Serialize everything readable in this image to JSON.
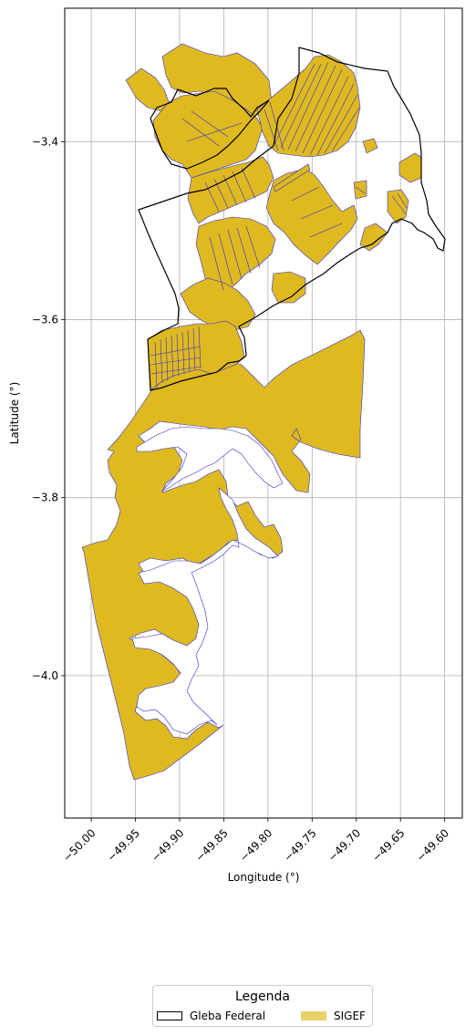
{
  "map": {
    "xlabel": "Longitude (°)",
    "ylabel": "Latitude (°)",
    "xlim": [
      -50.03,
      -49.58
    ],
    "ylim": [
      -4.16,
      -3.25
    ],
    "xticks": [
      -50.0,
      -49.95,
      -49.9,
      -49.85,
      -49.8,
      -49.75,
      -49.7,
      -49.65,
      -49.6
    ],
    "xtick_labels": [
      "−50.00",
      "−49.95",
      "−49.90",
      "−49.85",
      "−49.80",
      "−49.75",
      "−49.70",
      "−49.65",
      "−49.60"
    ],
    "yticks": [
      -3.4,
      -3.6,
      -3.8,
      -4.0
    ],
    "ytick_labels": [
      "−3.4",
      "−3.6",
      "−3.8",
      "−4.0"
    ],
    "grid": true
  },
  "layers": {
    "gleba": {
      "stroke": "#000000",
      "fill": "none"
    },
    "sigef": {
      "fill": "#dfb920",
      "stroke": "#3030d0",
      "legend_fill": "#e6d16a"
    }
  },
  "legend": {
    "title": "Legenda",
    "items": [
      {
        "label": "Gleba Federal",
        "swatch": "outline"
      },
      {
        "label": "SIGEF",
        "swatch": "filled"
      }
    ]
  }
}
